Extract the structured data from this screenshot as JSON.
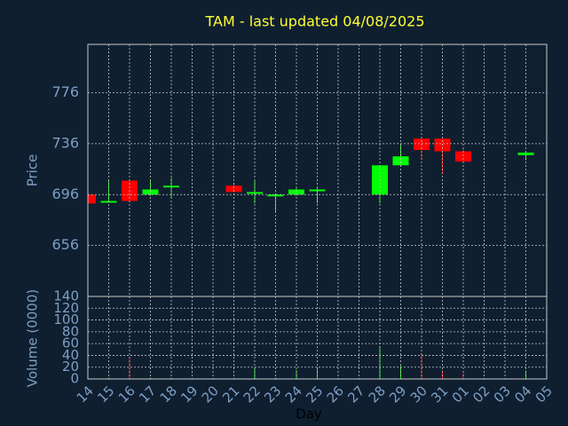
{
  "chart_data": {
    "type": "candlestick",
    "title": "TAM - last updated 04/08/2025",
    "xlabel": "Day",
    "ylabel": "Price",
    "categories": [
      "14",
      "15",
      "16",
      "17",
      "18",
      "19",
      "20",
      "21",
      "22",
      "23",
      "24",
      "25",
      "26",
      "27",
      "28",
      "29",
      "30",
      "31",
      "01",
      "02",
      "03",
      "04",
      "05"
    ],
    "open": [
      696,
      690,
      707,
      696,
      702,
      null,
      null,
      703,
      697,
      695,
      696,
      699,
      null,
      null,
      696,
      719,
      740,
      740,
      730,
      null,
      null,
      727,
      null
    ],
    "high": [
      696,
      707,
      707,
      707,
      709,
      null,
      null,
      705,
      707,
      697,
      701,
      701,
      null,
      null,
      719,
      736,
      740,
      740,
      732,
      null,
      null,
      729,
      null
    ],
    "low": [
      689,
      690,
      690,
      695,
      693,
      null,
      null,
      698,
      689,
      683,
      695,
      689,
      null,
      null,
      689,
      719,
      724,
      712,
      721,
      null,
      null,
      723,
      null
    ],
    "close": [
      689,
      691,
      691,
      700,
      703,
      null,
      null,
      698,
      698,
      696,
      700,
      700,
      null,
      null,
      719,
      726,
      731,
      730,
      722,
      null,
      null,
      729,
      null
    ],
    "up_color": "#00ff00",
    "down_color": "#ff0000",
    "ylim": [
      616,
      814
    ],
    "yticks": [
      656,
      696,
      736,
      776
    ],
    "grid": true,
    "volume": {
      "ylabel": "Volume (0000)",
      "values": [
        2,
        2,
        36,
        2,
        2,
        null,
        null,
        2,
        20,
        2,
        15,
        20,
        null,
        null,
        56,
        22,
        44,
        14,
        10,
        null,
        null,
        14,
        null
      ],
      "ylim": [
        0,
        140
      ],
      "yticks": [
        0,
        20,
        40,
        60,
        80,
        100,
        120,
        140
      ]
    }
  }
}
